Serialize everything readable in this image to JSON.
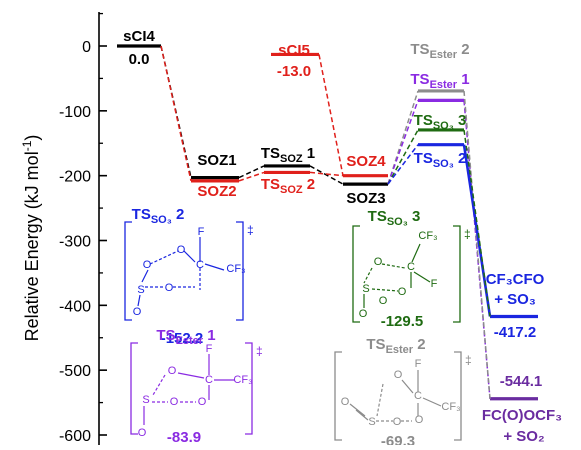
{
  "chart_data": {
    "type": "energy-profile",
    "ylabel": "Relative Energy (kJ mol",
    "ylabel_sup": "-1",
    "ylabel_close": ")",
    "ylim": [
      -640,
      30
    ],
    "yticks": [
      0,
      -100,
      -200,
      -300,
      -400,
      -500,
      -600
    ],
    "ytick_labels": [
      "0",
      "-100",
      "-200",
      "-300",
      "-400",
      "-500",
      "-600"
    ],
    "colors": {
      "black": "#000000",
      "red": "#e0201b",
      "blue": "#1a26e0",
      "green": "#1f6b12",
      "purple": "#8a2be2",
      "dark_purple": "#6a2ca0",
      "gray": "#8c8c8c"
    },
    "levels": [
      {
        "id": "sci4",
        "name": "sCI4",
        "value": 0.0,
        "value_label": "0.0",
        "color": "black"
      },
      {
        "id": "sci5",
        "name": "sCI5",
        "value": -13.0,
        "value_label": "-13.0",
        "color": "red"
      },
      {
        "id": "soz1",
        "name": "SOZ1",
        "value": -203,
        "color": "black"
      },
      {
        "id": "soz2",
        "name": "SOZ2",
        "value": -208,
        "color": "red"
      },
      {
        "id": "ts-soz1",
        "name": "TS",
        "sub": "SOZ",
        "tail": " 1",
        "value": -185,
        "color": "black"
      },
      {
        "id": "ts-soz2",
        "name": "TS",
        "sub": "SOZ",
        "tail": " 2",
        "value": -195,
        "color": "red"
      },
      {
        "id": "soz4",
        "name": "SOZ4",
        "value": -200,
        "color": "red"
      },
      {
        "id": "soz3",
        "name": "SOZ3",
        "value": -213,
        "color": "black"
      },
      {
        "id": "ts-ester2",
        "name": "TS",
        "sub": "Ester",
        "tail": " 2",
        "value": -69.3,
        "color": "gray"
      },
      {
        "id": "ts-ester1",
        "name": "TS",
        "sub": "Ester",
        "tail": " 1",
        "value": -83.9,
        "color": "purple"
      },
      {
        "id": "ts-so3-3",
        "name": "TS",
        "sub": "SO₃",
        "tail": " 3",
        "value": -129.5,
        "color": "green"
      },
      {
        "id": "ts-so3-2",
        "name": "TS",
        "sub": "SO₃",
        "tail": " 2",
        "value": -152.2,
        "color": "blue"
      },
      {
        "id": "cf3cfo",
        "name": "CF₃CFO",
        "name2": "+ SO₃",
        "value": -417.2,
        "value_label": "-417.2",
        "color": "blue"
      },
      {
        "id": "fcocf3",
        "name": "FC(O)OCF₃",
        "name2": "+ SO₂",
        "value": -544.1,
        "value_label": "-544.1",
        "color": "dark_purple"
      }
    ],
    "structures": [
      {
        "id": "ts-so3-2",
        "title_main": "TS",
        "title_sub": "SO₃",
        "title_tail": " 2",
        "value_label": "-152.2",
        "color": "blue",
        "atoms": [
          "F",
          "C",
          "CF₃",
          "O",
          "O",
          "O",
          "S",
          "O"
        ]
      },
      {
        "id": "ts-ester1",
        "title_main": "TS",
        "title_sub": "Ester",
        "title_tail": " 1",
        "value_label": "-83.9",
        "color": "purple",
        "atoms": [
          "F",
          "O",
          "C",
          "CF₃",
          "S",
          "O",
          "O",
          "O"
        ]
      },
      {
        "id": "ts-so3-3",
        "title_main": "TS",
        "title_sub": "SO₃",
        "title_tail": " 3",
        "value_label": "-129.5",
        "color": "green",
        "atoms": [
          "CF₃",
          "O",
          "C",
          "F",
          "S",
          "O",
          "O",
          "O"
        ]
      },
      {
        "id": "ts-ester2",
        "title_main": "TS",
        "title_sub": "Ester",
        "title_tail": " 2",
        "value_label": "-69.3",
        "color": "gray",
        "atoms": [
          "F",
          "C",
          "CF₃",
          "O",
          "S",
          "O",
          "O",
          "O"
        ]
      }
    ],
    "ts_symbol": "‡"
  }
}
